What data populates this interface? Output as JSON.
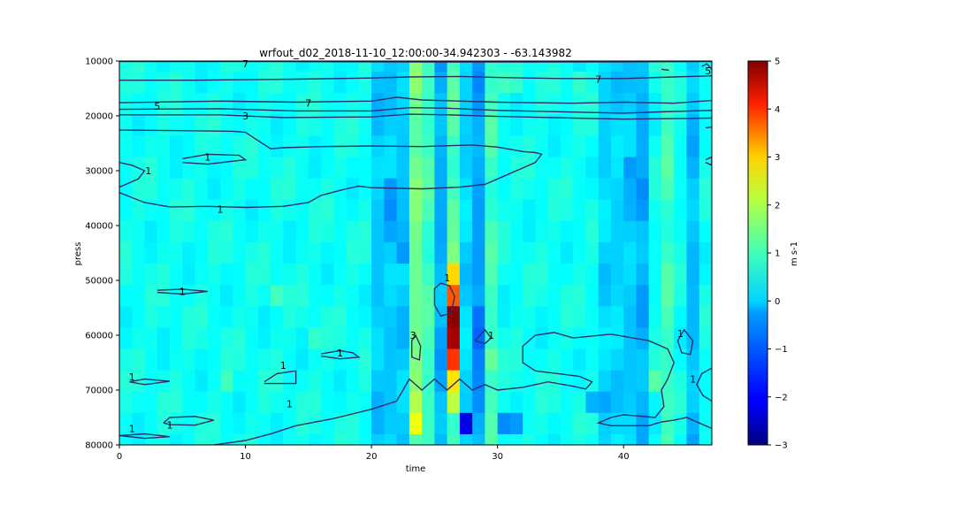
{
  "chart_data": {
    "type": "heatmap",
    "title": "wrfout_d02_2018-11-10_12:00:00-34.942303 - -63.143982",
    "xlabel": "time",
    "ylabel": "press",
    "xlim": [
      0,
      47
    ],
    "ylim": [
      10000,
      80000
    ],
    "y_inverted": true,
    "x_ticks": [
      0,
      10,
      20,
      30,
      40
    ],
    "x_tick_labels": [
      "0",
      "10",
      "20",
      "30",
      "40"
    ],
    "y_ticks": [
      10000,
      20000,
      30000,
      40000,
      50000,
      60000,
      70000,
      80000
    ],
    "y_tick_labels": [
      "10000",
      "20000",
      "30000",
      "40000",
      "50000",
      "60000",
      "70000",
      "80000"
    ],
    "colorbar": {
      "colormap": "jet",
      "label": "m s-1",
      "vmin": -3,
      "vmax": 5,
      "ticks": [
        -3,
        -2,
        -1,
        0,
        1,
        2,
        3,
        4,
        5
      ],
      "tick_labels": [
        "−3",
        "−2",
        "−1",
        "0",
        "1",
        "2",
        "3",
        "4",
        "5"
      ]
    },
    "grid_columns": 47,
    "grid_rows": 19,
    "background_value": 0.1,
    "column_anomalies": [
      {
        "x": [
          20,
          23
        ],
        "value": -0.4
      },
      {
        "x": [
          23,
          24
        ],
        "value": 0.9
      },
      {
        "x": [
          24,
          25
        ],
        "value": 0.5
      },
      {
        "x": [
          25,
          26
        ],
        "value": -0.6
      },
      {
        "x": [
          26,
          27
        ],
        "value": 0.6
      },
      {
        "x": [
          27,
          28
        ],
        "value": -0.3
      },
      {
        "x": [
          28,
          29
        ],
        "value": -0.7
      },
      {
        "x": [
          29,
          30
        ],
        "value": 0.5
      },
      {
        "x": [
          38,
          40
        ],
        "value": -0.3
      },
      {
        "x": [
          40,
          41
        ],
        "value": -0.4
      },
      {
        "x": [
          41,
          42
        ],
        "value": -0.6
      },
      {
        "x": [
          43,
          44
        ],
        "value": 0.5
      },
      {
        "x": [
          45,
          46
        ],
        "value": -0.5
      }
    ],
    "cells": [
      {
        "x": 26,
        "p": 46000,
        "value": 1.0
      },
      {
        "x": 26,
        "p": 50000,
        "value": 2.3
      },
      {
        "x": 26,
        "p": 54000,
        "value": 3.3
      },
      {
        "x": 26,
        "p": 58000,
        "value": 4.9
      },
      {
        "x": 26,
        "p": 62000,
        "value": 4.7
      },
      {
        "x": 26,
        "p": 66000,
        "value": 3.6
      },
      {
        "x": 26,
        "p": 70000,
        "value": 2.2
      },
      {
        "x": 26,
        "p": 74000,
        "value": 1.5
      },
      {
        "x": 26,
        "p": 78000,
        "value": 0.4
      },
      {
        "x": 27,
        "p": 78000,
        "value": -2.2
      },
      {
        "x": 23,
        "p": 74000,
        "value": 1.4
      },
      {
        "x": 23,
        "p": 78000,
        "value": 1.9
      },
      {
        "x": 28,
        "p": 58000,
        "value": -1.1
      },
      {
        "x": 28,
        "p": 62000,
        "value": -1.2
      },
      {
        "x": 28,
        "p": 66000,
        "value": -1.0
      },
      {
        "x": 29,
        "p": 66000,
        "value": 0.8
      },
      {
        "x": 30,
        "p": 78000,
        "value": -0.9
      },
      {
        "x": 31,
        "p": 78000,
        "value": -0.8
      },
      {
        "x": 21,
        "p": 34000,
        "value": -0.8
      },
      {
        "x": 21,
        "p": 38000,
        "value": -0.9
      },
      {
        "x": 21,
        "p": 42000,
        "value": -0.7
      },
      {
        "x": 22,
        "p": 42000,
        "value": -0.6
      },
      {
        "x": 22,
        "p": 46000,
        "value": -0.8
      },
      {
        "x": 40,
        "p": 30000,
        "value": -0.8
      },
      {
        "x": 41,
        "p": 34000,
        "value": -0.9
      },
      {
        "x": 41,
        "p": 38000,
        "value": -0.8
      },
      {
        "x": 37,
        "p": 74000,
        "value": -0.6
      },
      {
        "x": 38,
        "p": 74000,
        "value": -0.7
      },
      {
        "x": 42,
        "p": 70000,
        "value": 0.7
      },
      {
        "x": 12,
        "p": 54000,
        "value": 0.5
      },
      {
        "x": 15,
        "p": 62000,
        "value": 0.4
      },
      {
        "x": 8,
        "p": 70000,
        "value": 0.5
      },
      {
        "x": 30,
        "p": 14000,
        "value": 0.5
      },
      {
        "x": 31,
        "p": 14000,
        "value": 0.4
      },
      {
        "x": 36,
        "p": 14000,
        "value": 0.4
      }
    ],
    "contour_labels": [
      {
        "text": "7",
        "x": 10,
        "p": 10500
      },
      {
        "text": "7",
        "x": 38,
        "p": 13300
      },
      {
        "text": "7",
        "x": 15,
        "p": 17700
      },
      {
        "text": "5",
        "x": 3,
        "p": 18200
      },
      {
        "text": "3",
        "x": 10,
        "p": 20000
      },
      {
        "text": "1",
        "x": 7,
        "p": 27500
      },
      {
        "text": "1",
        "x": 2.3,
        "p": 30000
      },
      {
        "text": "1",
        "x": 8,
        "p": 37000
      },
      {
        "text": "1",
        "x": 5,
        "p": 52000
      },
      {
        "text": "1",
        "x": 26,
        "p": 49500
      },
      {
        "text": "3",
        "x": 23.3,
        "p": 60000
      },
      {
        "text": "1",
        "x": 29.5,
        "p": 60000
      },
      {
        "text": "1",
        "x": 17.5,
        "p": 63200
      },
      {
        "text": "1",
        "x": 13,
        "p": 65500
      },
      {
        "text": "1",
        "x": 1,
        "p": 67600
      },
      {
        "text": "1",
        "x": 13.5,
        "p": 72500
      },
      {
        "text": "1",
        "x": 4,
        "p": 76400
      },
      {
        "text": "1",
        "x": 1,
        "p": 77000
      },
      {
        "text": "1",
        "x": 44.5,
        "p": 59700
      },
      {
        "text": "1",
        "x": 45.5,
        "p": 68000
      },
      {
        "text": "5",
        "x": 46.7,
        "p": 11800
      }
    ],
    "contour_lines": [
      [
        [
          0,
          10100
        ],
        [
          12,
          10100
        ],
        [
          26,
          10200
        ],
        [
          40,
          10150
        ],
        [
          47,
          10100
        ]
      ],
      [
        [
          0,
          13500
        ],
        [
          6,
          13500
        ],
        [
          14,
          13300
        ],
        [
          20,
          13100
        ],
        [
          23,
          12900
        ],
        [
          27,
          12800
        ],
        [
          30,
          13000
        ],
        [
          35,
          13200
        ],
        [
          40,
          13200
        ],
        [
          44,
          12900
        ],
        [
          47,
          12700
        ]
      ],
      [
        [
          0,
          17600
        ],
        [
          8,
          17300
        ],
        [
          14,
          17500
        ],
        [
          20,
          17300
        ],
        [
          22,
          16600
        ],
        [
          24,
          17100
        ],
        [
          27,
          17300
        ],
        [
          30,
          17500
        ],
        [
          36,
          17700
        ],
        [
          40,
          17500
        ],
        [
          44,
          17700
        ],
        [
          47,
          17200
        ]
      ],
      [
        [
          0,
          18800
        ],
        [
          8,
          18700
        ],
        [
          14,
          19100
        ],
        [
          20,
          19100
        ],
        [
          23,
          18500
        ],
        [
          26,
          18600
        ],
        [
          30,
          19000
        ],
        [
          36,
          19300
        ],
        [
          40,
          19500
        ],
        [
          44,
          19200
        ],
        [
          47,
          19000
        ]
      ],
      [
        [
          0,
          19800
        ],
        [
          8,
          19800
        ],
        [
          13,
          20300
        ],
        [
          20,
          20200
        ],
        [
          23,
          19700
        ],
        [
          26,
          19800
        ],
        [
          30,
          20100
        ],
        [
          36,
          20400
        ],
        [
          40,
          20600
        ],
        [
          44,
          20500
        ],
        [
          47,
          20400
        ]
      ],
      [
        [
          0,
          22600
        ],
        [
          5,
          22700
        ],
        [
          9,
          22800
        ],
        [
          10,
          23000
        ],
        [
          11,
          24500
        ],
        [
          12,
          26000
        ],
        [
          13,
          25800
        ],
        [
          16,
          25600
        ],
        [
          20,
          25500
        ],
        [
          24,
          25600
        ],
        [
          28,
          25300
        ],
        [
          30,
          25700
        ],
        [
          32,
          26500
        ],
        [
          33,
          26700
        ],
        [
          33.5,
          27000
        ],
        [
          33,
          28500
        ],
        [
          32,
          29500
        ],
        [
          30,
          31500
        ],
        [
          29,
          32500
        ],
        [
          27,
          33000
        ],
        [
          24,
          33300
        ],
        [
          20,
          33100
        ],
        [
          19,
          32800
        ],
        [
          18,
          33300
        ],
        [
          17.5,
          33600
        ],
        [
          16,
          34500
        ],
        [
          15,
          35800
        ],
        [
          13,
          36500
        ],
        [
          10,
          36700
        ],
        [
          7,
          36500
        ],
        [
          4,
          36600
        ],
        [
          2,
          35800
        ],
        [
          0,
          34000
        ]
      ],
      [
        [
          0,
          28500
        ],
        [
          1,
          29000
        ],
        [
          2,
          30000
        ],
        [
          1.5,
          31500
        ],
        [
          0,
          33000
        ]
      ],
      [
        [
          5,
          27800
        ],
        [
          7,
          27000
        ],
        [
          9.5,
          27200
        ],
        [
          10,
          28000
        ],
        [
          7,
          28800
        ],
        [
          5,
          28500
        ]
      ],
      [
        [
          3,
          51800
        ],
        [
          5,
          51600
        ],
        [
          7,
          52000
        ],
        [
          5,
          52500
        ],
        [
          3,
          52200
        ]
      ],
      [
        [
          25,
          51500
        ],
        [
          25.5,
          50500
        ],
        [
          26.2,
          51000
        ],
        [
          26.6,
          53000
        ],
        [
          26.3,
          56000
        ],
        [
          25.5,
          56500
        ],
        [
          25,
          54500
        ],
        [
          25,
          51500
        ]
      ],
      [
        [
          23.2,
          61000
        ],
        [
          23.5,
          60000
        ],
        [
          23.9,
          62000
        ],
        [
          23.8,
          64500
        ],
        [
          23.2,
          64000
        ],
        [
          23.2,
          61000
        ]
      ],
      [
        [
          28.2,
          61000
        ],
        [
          29,
          59000
        ],
        [
          29.5,
          60500
        ],
        [
          29,
          61500
        ],
        [
          28.2,
          61000
        ]
      ],
      [
        [
          16,
          63400
        ],
        [
          17.5,
          62800
        ],
        [
          18.5,
          63200
        ],
        [
          19,
          64000
        ],
        [
          17.5,
          64300
        ],
        [
          16,
          63800
        ]
      ],
      [
        [
          11.5,
          68500
        ],
        [
          12.5,
          67000
        ],
        [
          14,
          66500
        ],
        [
          14,
          68800
        ],
        [
          11.5,
          68800
        ]
      ],
      [
        [
          0.8,
          68500
        ],
        [
          2,
          68000
        ],
        [
          4,
          68400
        ],
        [
          2,
          69000
        ],
        [
          0.8,
          68500
        ]
      ],
      [
        [
          3.5,
          76000
        ],
        [
          4,
          75000
        ],
        [
          6,
          74800
        ],
        [
          7.5,
          75500
        ],
        [
          6,
          76400
        ],
        [
          4,
          76300
        ],
        [
          3.5,
          76000
        ]
      ],
      [
        [
          0,
          78300
        ],
        [
          2,
          78000
        ],
        [
          4,
          78500
        ],
        [
          2,
          78800
        ],
        [
          0,
          78300
        ]
      ],
      [
        [
          7.5,
          80000
        ],
        [
          10,
          79200
        ],
        [
          12,
          78000
        ],
        [
          14,
          76500
        ],
        [
          17,
          75200
        ],
        [
          20,
          73500
        ],
        [
          22,
          72000
        ],
        [
          23,
          68000
        ],
        [
          24,
          70000
        ],
        [
          25,
          68000
        ],
        [
          26,
          70000
        ],
        [
          27,
          68000
        ],
        [
          28,
          70000
        ],
        [
          29,
          69000
        ],
        [
          30,
          70000
        ],
        [
          32,
          69500
        ],
        [
          34,
          68500
        ],
        [
          36,
          69300
        ],
        [
          37,
          69800
        ],
        [
          37.5,
          68500
        ],
        [
          36.5,
          67500
        ],
        [
          33,
          66500
        ],
        [
          32,
          65000
        ],
        [
          32,
          62000
        ],
        [
          33,
          60000
        ],
        [
          34.5,
          59500
        ],
        [
          36,
          60500
        ],
        [
          39,
          59800
        ],
        [
          42,
          61000
        ],
        [
          43.5,
          62500
        ],
        [
          44,
          65000
        ],
        [
          43.5,
          68000
        ],
        [
          43,
          70000
        ],
        [
          43.2,
          73000
        ],
        [
          42.5,
          75000
        ],
        [
          40,
          74500
        ],
        [
          39,
          75000
        ],
        [
          38,
          76000
        ],
        [
          39,
          76500
        ],
        [
          42,
          76500
        ],
        [
          43,
          75800
        ],
        [
          44,
          75500
        ],
        [
          45,
          75000
        ],
        [
          46,
          76000
        ],
        [
          47,
          77000
        ]
      ],
      [
        [
          44.3,
          61000
        ],
        [
          44.8,
          59000
        ],
        [
          45.5,
          61000
        ],
        [
          45.3,
          63500
        ],
        [
          44.6,
          63200
        ],
        [
          44.3,
          61000
        ]
      ],
      [
        [
          47,
          66000
        ],
        [
          46.2,
          67000
        ],
        [
          45.8,
          69000
        ],
        [
          46.3,
          71000
        ],
        [
          47,
          72000
        ]
      ],
      [
        [
          46.5,
          28000
        ],
        [
          47,
          27500
        ],
        [
          47,
          29000
        ],
        [
          46.5,
          28500
        ]
      ],
      [
        [
          46.2,
          11000
        ],
        [
          46.6,
          10500
        ],
        [
          47,
          11500
        ]
      ],
      [
        [
          43,
          11500
        ],
        [
          43.6,
          11700
        ]
      ],
      [
        [
          46.5,
          22200
        ],
        [
          47,
          22000
        ]
      ]
    ]
  }
}
